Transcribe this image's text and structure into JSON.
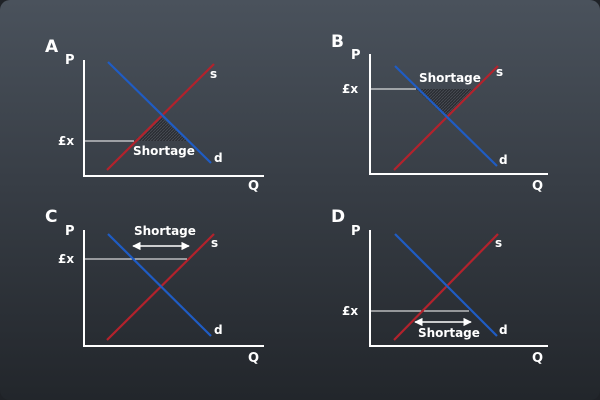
{
  "colors": {
    "supply": "#b3222c",
    "demand": "#1f5cc4",
    "axis": "#ffffff",
    "price_line": "#ffffff",
    "shade": "#2a2d33"
  },
  "axis_labels": {
    "price": "P",
    "quantity": "Q"
  },
  "curve_labels": {
    "supply": "s",
    "demand": "d"
  },
  "panels": [
    {
      "letter": "A",
      "price_label": "£x",
      "shortage_label": "Shortage",
      "shortage_style": "shaded-triangle-below"
    },
    {
      "letter": "B",
      "price_label": "£x",
      "shortage_label": "Shortage",
      "shortage_style": "shaded-triangle-above"
    },
    {
      "letter": "C",
      "price_label": "£x",
      "shortage_label": "Shortage",
      "shortage_style": "arrow-above"
    },
    {
      "letter": "D",
      "price_label": "£x",
      "shortage_label": "Shortage",
      "shortage_style": "arrow-below"
    }
  ]
}
